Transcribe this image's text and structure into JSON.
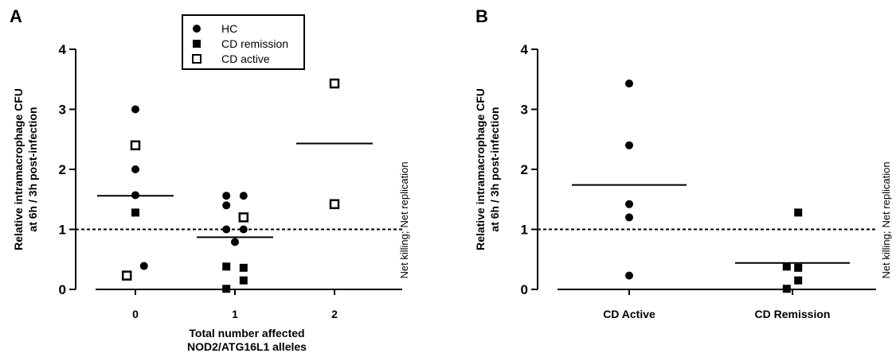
{
  "chart_data": [
    {
      "type": "scatter",
      "panel_label": "A",
      "title": "",
      "xlabel_lines": [
        "Total number affected",
        "NOD2/ATG16L1 alleles"
      ],
      "ylabel_lines": [
        "Relative intramacrophage CFU",
        "at 6h / 3h post-infection"
      ],
      "ylim": [
        0,
        4
      ],
      "yticks": [
        0,
        1,
        2,
        3,
        4
      ],
      "categories": [
        "0",
        "1",
        "2"
      ],
      "reference_line": 1,
      "side_labels": {
        "above": "Net replication",
        "below": "Net killing"
      },
      "legend": {
        "placement": "top-center",
        "entries": [
          {
            "name": "HC",
            "marker": "filled-circle"
          },
          {
            "name": "CD remission",
            "marker": "filled-square"
          },
          {
            "name": "CD active",
            "marker": "open-square"
          }
        ]
      },
      "series": [
        {
          "name": "HC",
          "marker": "filled-circle",
          "points": [
            {
              "category": "0",
              "y": 3.0,
              "jitter": 0
            },
            {
              "category": "0",
              "y": 2.0,
              "jitter": 0
            },
            {
              "category": "0",
              "y": 1.57,
              "jitter": 0
            },
            {
              "category": "0",
              "y": 0.39,
              "jitter": 0.12
            },
            {
              "category": "1",
              "y": 1.56,
              "jitter": -0.12
            },
            {
              "category": "1",
              "y": 1.56,
              "jitter": 0.12
            },
            {
              "category": "1",
              "y": 1.4,
              "jitter": -0.12
            },
            {
              "category": "1",
              "y": 1.0,
              "jitter": -0.12
            },
            {
              "category": "1",
              "y": 1.0,
              "jitter": 0.12
            },
            {
              "category": "1",
              "y": 0.79,
              "jitter": 0
            }
          ]
        },
        {
          "name": "CD remission",
          "marker": "filled-square",
          "points": [
            {
              "category": "0",
              "y": 1.28,
              "jitter": 0
            },
            {
              "category": "1",
              "y": 0.38,
              "jitter": -0.12
            },
            {
              "category": "1",
              "y": 0.36,
              "jitter": 0.12
            },
            {
              "category": "1",
              "y": 0.15,
              "jitter": 0.12
            },
            {
              "category": "1",
              "y": 0.01,
              "jitter": -0.12
            }
          ]
        },
        {
          "name": "CD active",
          "marker": "open-square",
          "points": [
            {
              "category": "0",
              "y": 2.4,
              "jitter": 0
            },
            {
              "category": "0",
              "y": 0.23,
              "jitter": -0.12
            },
            {
              "category": "1",
              "y": 1.2,
              "jitter": 0.12
            },
            {
              "category": "2",
              "y": 3.43,
              "jitter": 0
            },
            {
              "category": "2",
              "y": 1.42,
              "jitter": 0
            }
          ]
        }
      ],
      "means": [
        {
          "category": "0",
          "y": 1.56
        },
        {
          "category": "1",
          "y": 0.87
        },
        {
          "category": "2",
          "y": 2.43
        }
      ]
    },
    {
      "type": "scatter",
      "panel_label": "B",
      "title": "",
      "xlabel_lines": [],
      "ylabel_lines": [
        "Relative intramacrophage CFU",
        "at 6h / 3h post-infection"
      ],
      "ylim": [
        0,
        4
      ],
      "yticks": [
        0,
        1,
        2,
        3,
        4
      ],
      "categories": [
        "CD Active",
        "CD Remission"
      ],
      "reference_line": 1,
      "side_labels": {
        "above": "Net replication",
        "below": "Net killing"
      },
      "series": [
        {
          "name": "CD Active",
          "marker": "filled-circle",
          "points": [
            {
              "category": "CD Active",
              "y": 3.43,
              "jitter": 0
            },
            {
              "category": "CD Active",
              "y": 2.4,
              "jitter": 0
            },
            {
              "category": "CD Active",
              "y": 1.42,
              "jitter": 0
            },
            {
              "category": "CD Active",
              "y": 1.2,
              "jitter": 0
            },
            {
              "category": "CD Active",
              "y": 0.23,
              "jitter": 0
            }
          ]
        },
        {
          "name": "CD Remission",
          "marker": "filled-square",
          "points": [
            {
              "category": "CD Remission",
              "y": 1.28,
              "jitter": 0.08
            },
            {
              "category": "CD Remission",
              "y": 0.38,
              "jitter": -0.08
            },
            {
              "category": "CD Remission",
              "y": 0.36,
              "jitter": 0.08
            },
            {
              "category": "CD Remission",
              "y": 0.15,
              "jitter": 0.08
            },
            {
              "category": "CD Remission",
              "y": 0.01,
              "jitter": -0.08
            }
          ]
        }
      ],
      "means": [
        {
          "category": "CD Active",
          "y": 1.74
        },
        {
          "category": "CD Remission",
          "y": 0.44
        }
      ]
    }
  ]
}
